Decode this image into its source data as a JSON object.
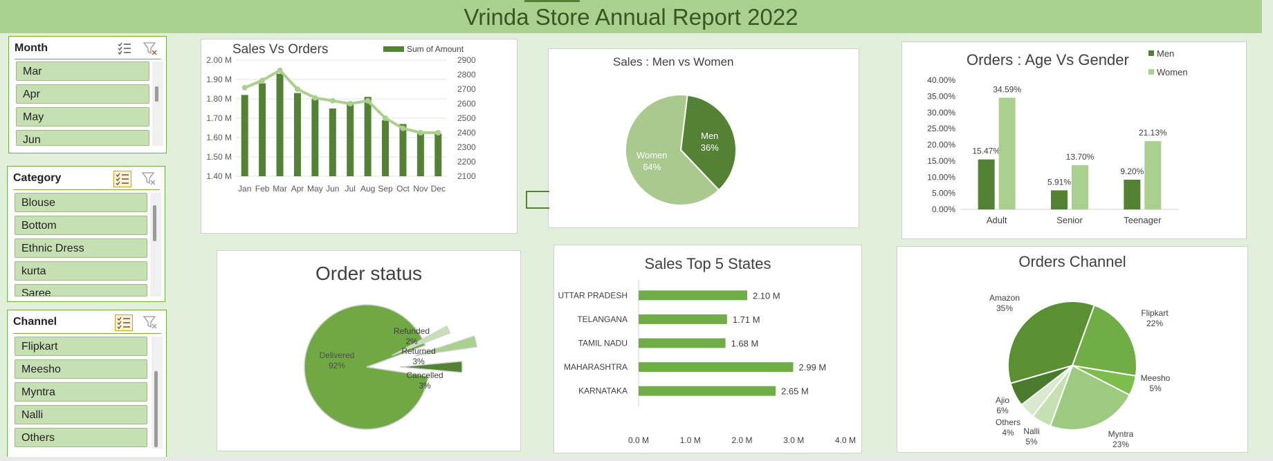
{
  "report_title": "Vrinda Store Annual Report 2022",
  "colors": {
    "dark_green": "#548235",
    "mid_green": "#70ad47",
    "light_green": "#a9d08e",
    "pale_green": "#c6e0b4",
    "title_text": "#375623"
  },
  "icons": {
    "multi_select": "multi-select-icon",
    "clear_filter": "clear-filter-icon"
  },
  "slicers": {
    "month": {
      "header": "Month",
      "items": [
        "Mar",
        "Apr",
        "May",
        "Jun"
      ]
    },
    "category": {
      "header": "Category",
      "items": [
        "Blouse",
        "Bottom",
        "Ethnic Dress",
        "kurta",
        "Saree"
      ]
    },
    "channel": {
      "header": "Channel",
      "items": [
        "Flipkart",
        "Meesho",
        "Myntra",
        "Nalli",
        "Others"
      ]
    }
  },
  "chart_data": [
    {
      "id": "sales_vs_orders",
      "type": "bar",
      "title": "Sales Vs Orders",
      "categories": [
        "Jan",
        "Feb",
        "Mar",
        "Apr",
        "May",
        "Jun",
        "Jul",
        "Aug",
        "Sep",
        "Oct",
        "Nov",
        "Dec"
      ],
      "series": [
        {
          "name": "Sum of Amount",
          "type": "bar",
          "axis": "left",
          "values": [
            1.82,
            1.88,
            1.93,
            1.83,
            1.8,
            1.75,
            1.77,
            1.81,
            1.69,
            1.67,
            1.62,
            1.62
          ]
        },
        {
          "type": "line",
          "axis": "right",
          "values": [
            2710,
            2760,
            2830,
            2700,
            2640,
            2620,
            2600,
            2620,
            2500,
            2430,
            2400,
            2400
          ]
        }
      ],
      "y_left": {
        "min": 1.4,
        "max": 2.0,
        "ticks": [
          "1.40 M",
          "1.50 M",
          "1.60 M",
          "1.70 M",
          "1.80 M",
          "1.90 M",
          "2.00 M"
        ]
      },
      "y_right": {
        "min": 2100,
        "max": 2900,
        "ticks": [
          "2100",
          "2200",
          "2300",
          "2400",
          "2500",
          "2600",
          "2700",
          "2800",
          "2900"
        ]
      },
      "legend": "top",
      "grid": true
    },
    {
      "id": "sales_men_women",
      "type": "pie",
      "title": "Sales : Men vs Women",
      "slices": [
        {
          "label": "Men",
          "value": 36,
          "display": "36%"
        },
        {
          "label": "Women",
          "value": 64,
          "display": "64%"
        }
      ]
    },
    {
      "id": "orders_age_gender",
      "type": "bar",
      "title": "Orders : Age Vs Gender",
      "categories": [
        "Adult",
        "Senior",
        "Teenager"
      ],
      "series": [
        {
          "name": "Men",
          "values": [
            15.47,
            5.91,
            9.2
          ],
          "labels": [
            "15.47%",
            "5.91%",
            "9.20%"
          ]
        },
        {
          "name": "Women",
          "values": [
            34.59,
            13.7,
            21.13
          ],
          "labels": [
            "34.59%",
            "13.70%",
            "21.13%"
          ]
        }
      ],
      "ylim": [
        0,
        40
      ],
      "y_ticks": [
        "0.00%",
        "5.00%",
        "10.00%",
        "15.00%",
        "20.00%",
        "25.00%",
        "30.00%",
        "35.00%",
        "40.00%"
      ],
      "legend": "top-right",
      "grid": false
    },
    {
      "id": "order_status",
      "type": "pie",
      "title": "Order status",
      "slices": [
        {
          "label": "Delivered",
          "value": 92,
          "display": "92%"
        },
        {
          "label": "Refunded",
          "value": 2,
          "display": "2%"
        },
        {
          "label": "Returned",
          "value": 3,
          "display": "3%"
        },
        {
          "label": "Cancelled",
          "value": 3,
          "display": "3%"
        }
      ]
    },
    {
      "id": "sales_top5_states",
      "type": "bar",
      "orientation": "horizontal",
      "title": "Sales Top 5 States",
      "categories": [
        "UTTAR PRADESH",
        "TELANGANA",
        "TAMIL NADU",
        "MAHARASHTRA",
        "KARNATAKA"
      ],
      "values": [
        2.1,
        1.71,
        1.68,
        2.99,
        2.65
      ],
      "labels": [
        "2.10 M",
        "1.71 M",
        "1.68 M",
        "2.99 M",
        "2.65 M"
      ],
      "xlim": [
        0,
        4
      ],
      "x_ticks": [
        "0.0 M",
        "1.0 M",
        "2.0 M",
        "3.0 M",
        "4.0 M"
      ]
    },
    {
      "id": "orders_channel",
      "type": "pie",
      "title": "Orders Channel",
      "slices": [
        {
          "label": "Amazon",
          "value": 35,
          "display": "35%"
        },
        {
          "label": "Flipkart",
          "value": 22,
          "display": "22%"
        },
        {
          "label": "Meesho",
          "value": 5,
          "display": "5%"
        },
        {
          "label": "Myntra",
          "value": 23,
          "display": "23%"
        },
        {
          "label": "Nalli",
          "value": 5,
          "display": "5%"
        },
        {
          "label": "Others",
          "value": 4,
          "display": "4%"
        },
        {
          "label": "Ajio",
          "value": 6,
          "display": "6%"
        }
      ]
    }
  ]
}
